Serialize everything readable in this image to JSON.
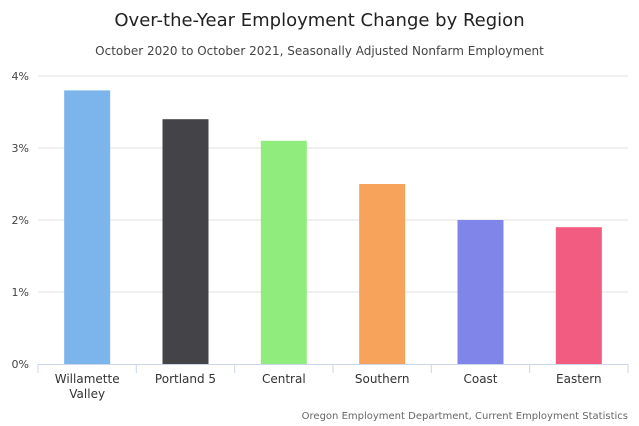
{
  "chart_data": {
    "type": "bar",
    "title": "Over-the-Year Employment Change by Region",
    "subtitle": "October 2020 to October 2021, Seasonally Adjusted Nonfarm Employment",
    "categories": [
      [
        "Willamette",
        "Valley"
      ],
      [
        "Portland 5"
      ],
      [
        "Central"
      ],
      [
        "Southern"
      ],
      [
        "Coast"
      ],
      [
        "Eastern"
      ]
    ],
    "values": [
      3.8,
      3.4,
      3.1,
      2.5,
      2.0,
      1.9
    ],
    "colors": [
      "#7cb5ec",
      "#434348",
      "#90ed7d",
      "#f7a35c",
      "#8085e9",
      "#f15c80"
    ],
    "ylim": [
      0,
      4
    ],
    "yticks": [
      0,
      1,
      2,
      3,
      4
    ],
    "ytick_labels": [
      "0%",
      "1%",
      "2%",
      "3%",
      "4%"
    ],
    "xlabel": "",
    "ylabel": "",
    "grid": true,
    "credits": "Oregon Employment Department, Current Employment Statistics"
  }
}
